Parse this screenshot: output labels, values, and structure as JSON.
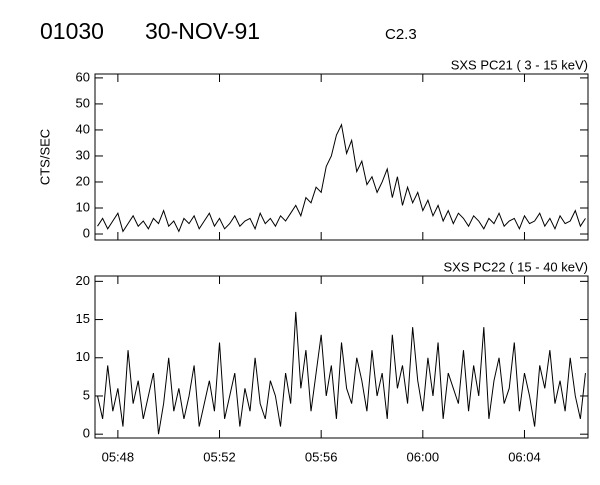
{
  "header": {
    "id": "01030",
    "date": "30-NOV-91",
    "class": "C2.3"
  },
  "chart_data": [
    {
      "type": "line",
      "title": "SXS PC21  (  3 - 15 keV)",
      "y_label": "CTS/SEC",
      "xlim": [
        347.1,
        366.5
      ],
      "ylim": [
        -2.3,
        61.5
      ],
      "yticks": [
        0,
        10,
        20,
        30,
        40,
        50,
        60
      ],
      "x": [
        347.2,
        347.4,
        347.6,
        347.8,
        348,
        348.2,
        348.4,
        348.6,
        348.8,
        349,
        349.2,
        349.4,
        349.6,
        349.8,
        350,
        350.2,
        350.4,
        350.6,
        350.8,
        351,
        351.2,
        351.4,
        351.6,
        351.8,
        352,
        352.2,
        352.4,
        352.6,
        352.8,
        353,
        353.2,
        353.4,
        353.6,
        353.8,
        354,
        354.2,
        354.4,
        354.6,
        354.8,
        355,
        355.2,
        355.4,
        355.6,
        355.8,
        356,
        356.2,
        356.4,
        356.6,
        356.8,
        357,
        357.2,
        357.4,
        357.6,
        357.8,
        358,
        358.2,
        358.4,
        358.6,
        358.8,
        359,
        359.2,
        359.4,
        359.6,
        359.8,
        360,
        360.2,
        360.4,
        360.6,
        360.8,
        361,
        361.2,
        361.4,
        361.6,
        361.8,
        362,
        362.2,
        362.4,
        362.6,
        362.8,
        363,
        363.2,
        363.4,
        363.6,
        363.8,
        364,
        364.2,
        364.4,
        364.6,
        364.8,
        365,
        365.2,
        365.4,
        365.6,
        365.8,
        366,
        366.2,
        366.4
      ],
      "series": [
        {
          "color": "#000000",
          "values": [
            3,
            6,
            2,
            5,
            8,
            1,
            4,
            7,
            3,
            5,
            2,
            6,
            4,
            9,
            3,
            5,
            1,
            6,
            4,
            7,
            2,
            5,
            8,
            3,
            6,
            2,
            4,
            7,
            3,
            5,
            6,
            2,
            8,
            4,
            6,
            3,
            7,
            5,
            8,
            11,
            7,
            14,
            12,
            18,
            16,
            26,
            30,
            38,
            42,
            31,
            36,
            24,
            28,
            19,
            22,
            16,
            20,
            25,
            14,
            22,
            11,
            18,
            12,
            16,
            9,
            13,
            7,
            11,
            5,
            9,
            4,
            8,
            6,
            3,
            7,
            5,
            2,
            6,
            4,
            8,
            3,
            5,
            6,
            2,
            7,
            4,
            5,
            8,
            3,
            6,
            2,
            7,
            4,
            5,
            9,
            3,
            6
          ]
        }
      ]
    },
    {
      "type": "line",
      "title": "SXS PC22  ( 15 - 40 keV)",
      "xlim": [
        347.1,
        366.5
      ],
      "ylim": [
        -0.5,
        20.7
      ],
      "yticks": [
        0,
        5,
        10,
        15,
        20
      ],
      "xticks": [
        {
          "value": 348,
          "label": "05:48"
        },
        {
          "value": 352,
          "label": "05:52"
        },
        {
          "value": 356,
          "label": "05:56"
        },
        {
          "value": 360,
          "label": "06:00"
        },
        {
          "value": 364,
          "label": "06:04"
        }
      ],
      "x": [
        347.2,
        347.4,
        347.6,
        347.8,
        348,
        348.2,
        348.4,
        348.6,
        348.8,
        349,
        349.2,
        349.4,
        349.6,
        349.8,
        350,
        350.2,
        350.4,
        350.6,
        350.8,
        351,
        351.2,
        351.4,
        351.6,
        351.8,
        352,
        352.2,
        352.4,
        352.6,
        352.8,
        353,
        353.2,
        353.4,
        353.6,
        353.8,
        354,
        354.2,
        354.4,
        354.6,
        354.8,
        355,
        355.2,
        355.4,
        355.6,
        355.8,
        356,
        356.2,
        356.4,
        356.6,
        356.8,
        357,
        357.2,
        357.4,
        357.6,
        357.8,
        358,
        358.2,
        358.4,
        358.6,
        358.8,
        359,
        359.2,
        359.4,
        359.6,
        359.8,
        360,
        360.2,
        360.4,
        360.6,
        360.8,
        361,
        361.2,
        361.4,
        361.6,
        361.8,
        362,
        362.2,
        362.4,
        362.6,
        362.8,
        363,
        363.2,
        363.4,
        363.6,
        363.8,
        364,
        364.2,
        364.4,
        364.6,
        364.8,
        365,
        365.2,
        365.4,
        365.6,
        365.8,
        366,
        366.2,
        366.4
      ],
      "series": [
        {
          "color": "#000000",
          "values": [
            5,
            2,
            9,
            3,
            6,
            1,
            11,
            4,
            7,
            2,
            5,
            8,
            0,
            4,
            10,
            3,
            6,
            2,
            5,
            9,
            1,
            4,
            7,
            3,
            12,
            2,
            5,
            8,
            1,
            6,
            3,
            10,
            4,
            2,
            7,
            5,
            1,
            8,
            4,
            16,
            6,
            11,
            3,
            8,
            13,
            5,
            9,
            2,
            12,
            6,
            4,
            10,
            7,
            3,
            11,
            5,
            8,
            2,
            13,
            6,
            9,
            4,
            14,
            7,
            3,
            10,
            5,
            12,
            2,
            8,
            6,
            4,
            11,
            3,
            9,
            5,
            14,
            2,
            7,
            10,
            4,
            6,
            12,
            3,
            8,
            5,
            1,
            9,
            6,
            11,
            4,
            7,
            3,
            10,
            5,
            2,
            8
          ]
        }
      ]
    }
  ]
}
